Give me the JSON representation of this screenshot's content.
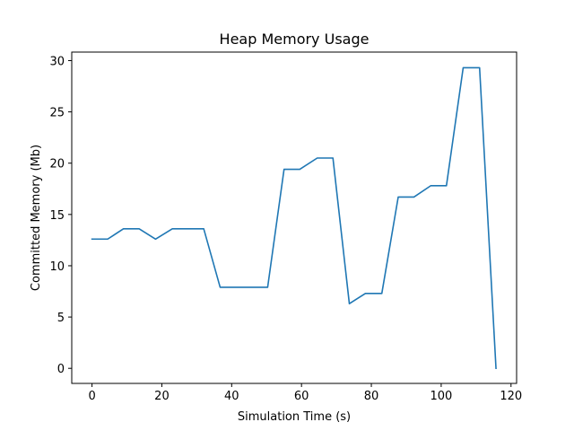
{
  "chart_data": {
    "type": "line",
    "title": "Heap Memory Usage",
    "xlabel": "Simulation Time (s)",
    "ylabel": "Committed Memory (Mb)",
    "xlim": [
      -5.8,
      121.6
    ],
    "ylim": [
      -1.47,
      30.83
    ],
    "xticks": [
      0,
      20,
      40,
      60,
      80,
      100,
      120
    ],
    "yticks": [
      0,
      5,
      10,
      15,
      20,
      25,
      30
    ],
    "grid": false,
    "line_color": "#1f77b4",
    "series": [
      {
        "x": [
          0,
          4.5,
          9,
          13.5,
          18.2,
          23,
          27.5,
          32,
          36.7,
          41,
          45.7,
          50.3,
          55,
          59.5,
          64.5,
          69,
          73.7,
          78.3,
          83,
          87.7,
          92.2,
          97,
          101.5,
          106.3,
          111,
          115.7
        ],
        "y": [
          12.6,
          12.6,
          13.6,
          13.6,
          12.6,
          13.6,
          13.6,
          13.6,
          7.9,
          7.9,
          7.9,
          7.9,
          19.4,
          19.4,
          20.5,
          20.5,
          6.3,
          7.3,
          7.3,
          16.7,
          16.7,
          17.8,
          17.8,
          29.3,
          29.3,
          0
        ]
      }
    ]
  }
}
